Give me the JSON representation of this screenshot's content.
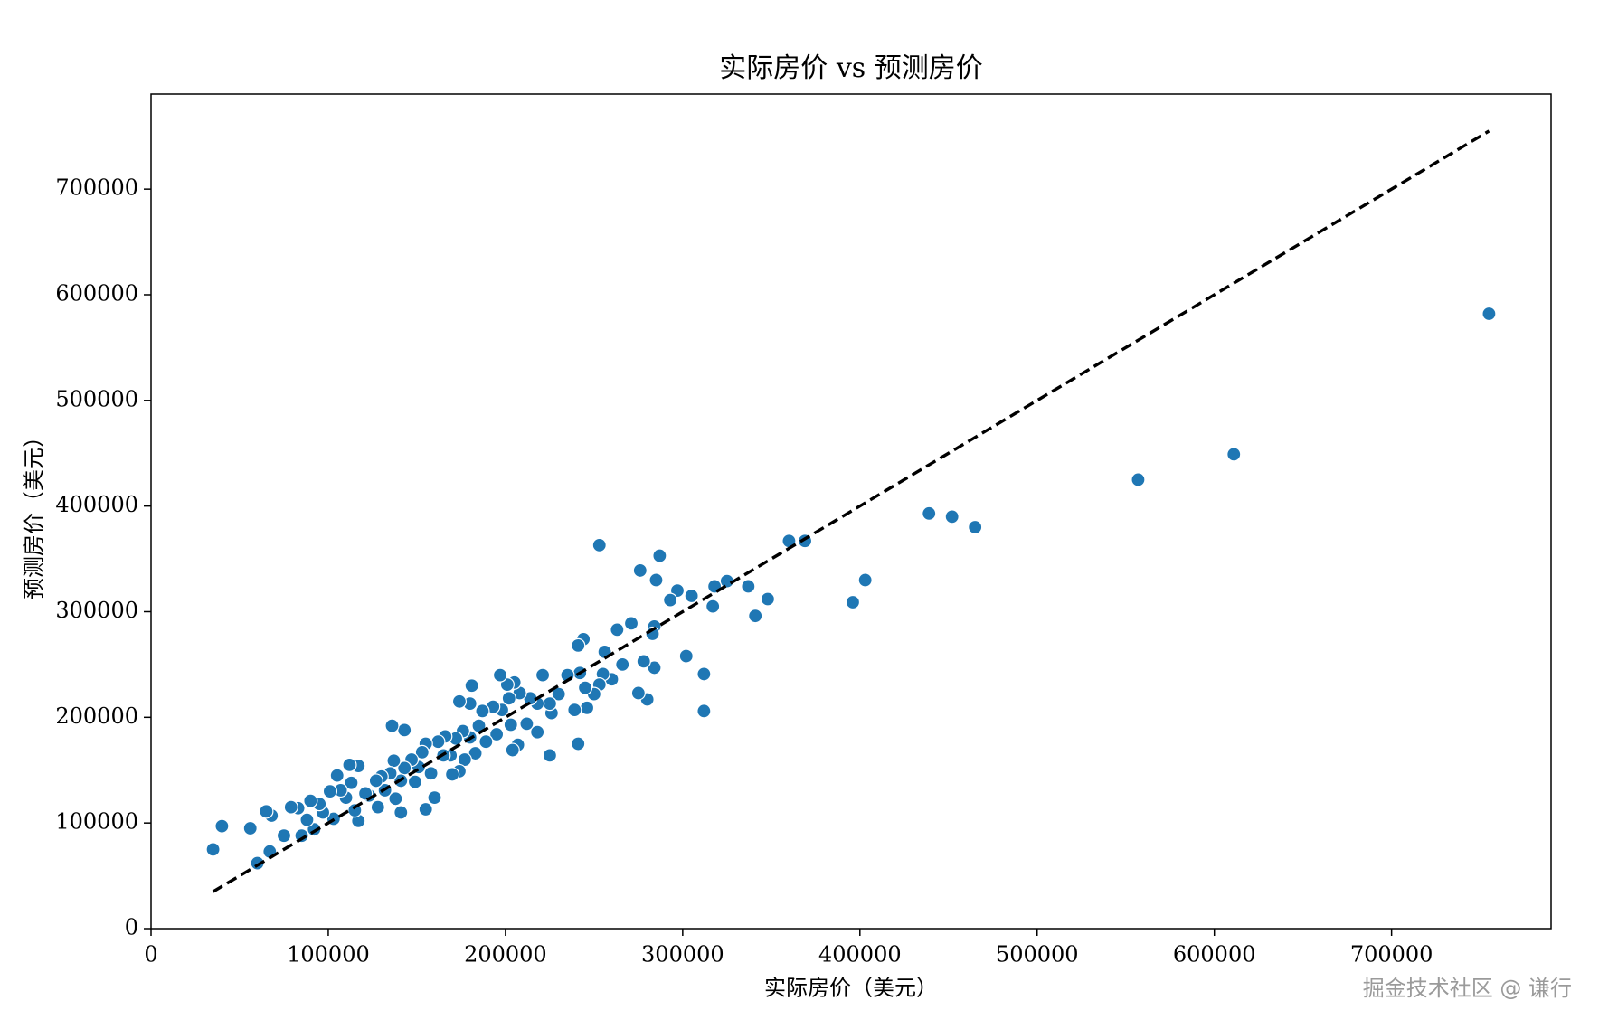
{
  "chart_data": {
    "type": "scatter",
    "title": "实际房价 vs 预测房价",
    "x_label": "实际房价（美元）",
    "y_label": "预测房价（美元）",
    "watermark": "掘金技术社区 @ 谦行",
    "color": "#1f77b4",
    "x": [
      755000,
      611000,
      557000,
      465000,
      452000,
      439000,
      403000,
      396000,
      369000,
      360000,
      348000,
      341000,
      337000,
      325000,
      318000,
      317000,
      312000,
      312000,
      305000,
      302000,
      297000,
      293000,
      287000,
      285000,
      284000,
      283000,
      284000,
      280000,
      278000,
      276000,
      275000,
      271000,
      266000,
      263000,
      260000,
      256000,
      255000,
      253000,
      253000,
      250000,
      246000,
      245000,
      244000,
      241000,
      242000,
      241000,
      239000,
      235000,
      230000,
      226000,
      225000,
      225000,
      221000,
      218000,
      218000,
      214000,
      212000,
      208000,
      207000,
      205000,
      204000,
      203000,
      202000,
      201000,
      197000,
      198000,
      195000,
      193000,
      189000,
      187000,
      185000,
      183000,
      181000,
      180000,
      180000,
      177000,
      174000,
      176000,
      174000,
      172000,
      170000,
      169000,
      166000,
      165000,
      162000,
      160000,
      158000,
      155000,
      155000,
      153000,
      151000,
      149000,
      147000,
      143000,
      143000,
      141000,
      141000,
      138000,
      137000,
      136000,
      135000,
      132000,
      130000,
      128000,
      127000,
      123000,
      121000,
      117000,
      117000,
      115000,
      113000,
      112000,
      110000,
      107000,
      105000,
      103000,
      101000,
      97000,
      95000,
      92000,
      90000,
      88000,
      85000,
      83000,
      79000,
      75000,
      68000,
      65000,
      67000,
      60000,
      56000,
      40000,
      35000
    ],
    "values": [
      582000,
      449000,
      425000,
      380000,
      390000,
      393000,
      330000,
      309000,
      367000,
      367000,
      312000,
      296000,
      324000,
      329000,
      324000,
      305000,
      241000,
      206000,
      315000,
      258000,
      320000,
      311000,
      353000,
      330000,
      286000,
      279000,
      247000,
      217000,
      253000,
      339000,
      223000,
      289000,
      250000,
      283000,
      236000,
      262000,
      241000,
      363000,
      231000,
      222000,
      209000,
      228000,
      274000,
      268000,
      242000,
      175000,
      207000,
      240000,
      222000,
      204000,
      164000,
      213000,
      240000,
      213000,
      186000,
      218000,
      194000,
      223000,
      174000,
      233000,
      169000,
      193000,
      218000,
      231000,
      240000,
      207000,
      184000,
      210000,
      177000,
      206000,
      192000,
      166000,
      230000,
      213000,
      181000,
      160000,
      215000,
      187000,
      149000,
      180000,
      146000,
      164000,
      182000,
      164000,
      177000,
      124000,
      147000,
      113000,
      175000,
      167000,
      153000,
      139000,
      160000,
      152000,
      188000,
      110000,
      140000,
      123000,
      159000,
      192000,
      147000,
      131000,
      144000,
      115000,
      140000,
      126000,
      128000,
      154000,
      102000,
      112000,
      138000,
      155000,
      124000,
      131000,
      145000,
      104000,
      130000,
      110000,
      118000,
      94000,
      121000,
      103000,
      88000,
      114000,
      115000,
      88000,
      107000,
      111000,
      73000,
      62000,
      95000,
      97000,
      75000
    ],
    "reference_line": {
      "x": [
        35000,
        755000
      ],
      "y": [
        35000,
        755000
      ],
      "color": "#000000",
      "style": "dashed"
    },
    "xlim": [
      0,
      790000
    ],
    "ylim": [
      0,
      790000
    ],
    "xticks": [
      0,
      100000,
      200000,
      300000,
      400000,
      500000,
      600000,
      700000
    ],
    "yticks": [
      0,
      100000,
      200000,
      300000,
      400000,
      500000,
      600000,
      700000
    ],
    "grid": false
  }
}
